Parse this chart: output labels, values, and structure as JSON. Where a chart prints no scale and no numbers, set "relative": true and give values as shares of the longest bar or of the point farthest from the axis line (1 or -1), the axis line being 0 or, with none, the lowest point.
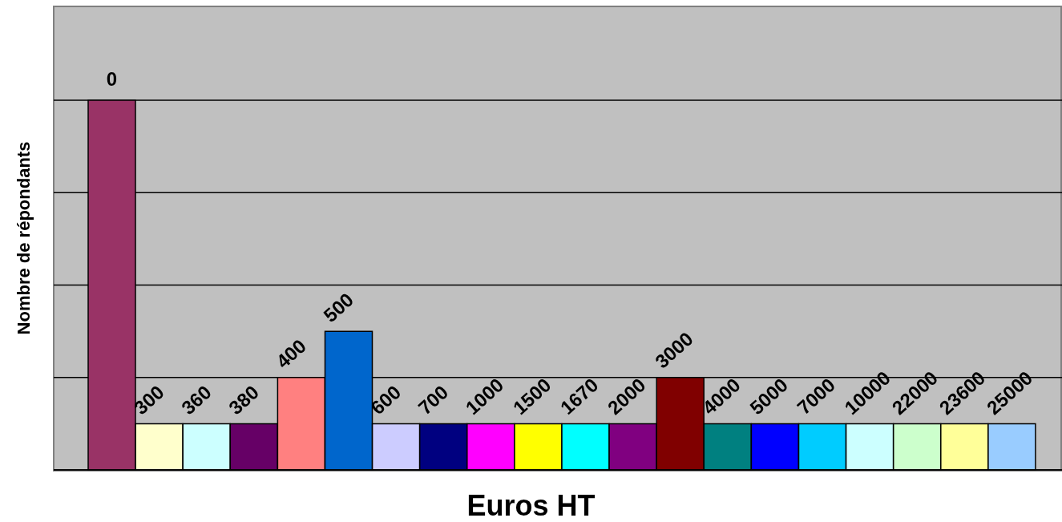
{
  "chart_data": {
    "type": "bar",
    "relative": true,
    "xlabel": "Euros HT",
    "ylabel": "Nombre de répondants",
    "categories": [
      "0",
      "300",
      "360",
      "380",
      "400",
      "500",
      "600",
      "700",
      "1000",
      "1500",
      "1670",
      "2000",
      "3000",
      "4000",
      "5000",
      "7000",
      "10000",
      "22000",
      "23600",
      "25000"
    ],
    "values": [
      1,
      0.125,
      0.125,
      0.125,
      0.25,
      0.375,
      0.125,
      0.125,
      0.125,
      0.125,
      0.125,
      0.125,
      0.25,
      0.125,
      0.125,
      0.125,
      0.125,
      0.125,
      0.125,
      0.125
    ],
    "colors": [
      "#993366",
      "#ffffcc",
      "#ccffff",
      "#660066",
      "#ff8080",
      "#0066cc",
      "#ccccff",
      "#000080",
      "#ff00ff",
      "#ffff00",
      "#00ffff",
      "#800080",
      "#800000",
      "#008080",
      "#0000ff",
      "#00ccff",
      "#ccffff",
      "#ccffcc",
      "#ffff99",
      "#99ccff"
    ],
    "grid": "y"
  }
}
